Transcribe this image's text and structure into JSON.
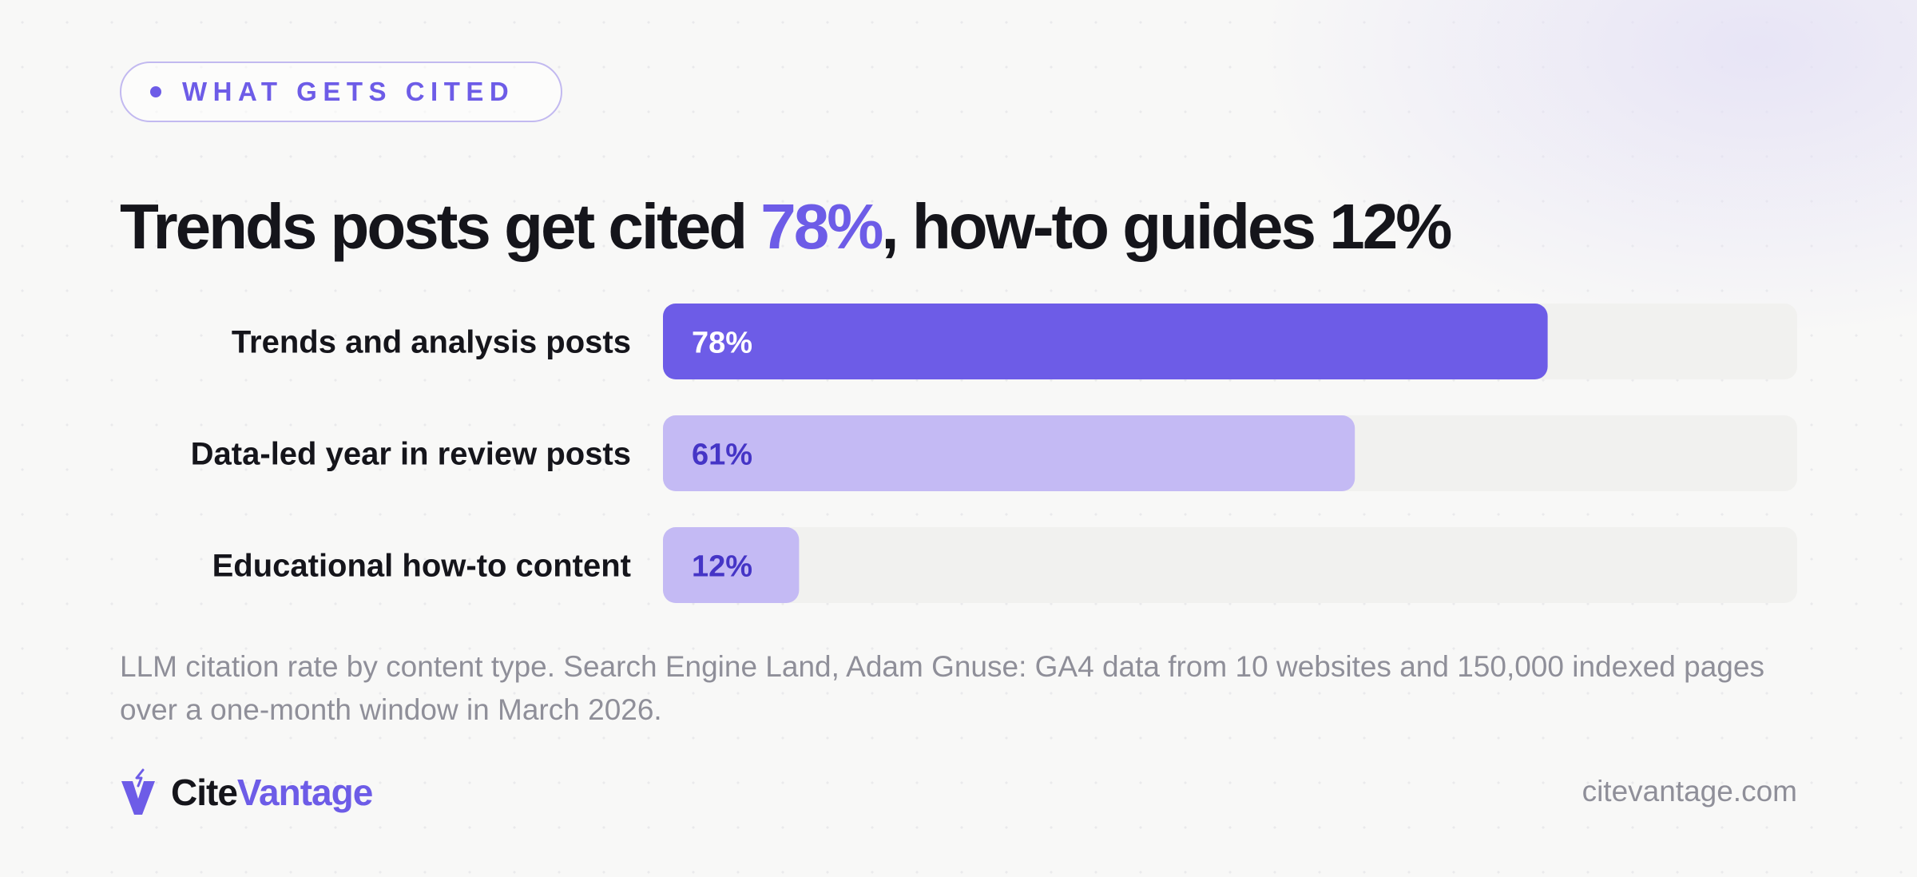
{
  "badge": {
    "label": "WHAT GETS CITED"
  },
  "headline": {
    "part1": "Trends posts get cited ",
    "highlight": "78%",
    "part2": ", how-to guides 12%"
  },
  "chart_data": {
    "type": "bar",
    "orientation": "horizontal",
    "categories": [
      "Trends and analysis posts",
      "Data-led year in review posts",
      "Educational how-to content"
    ],
    "values": [
      78,
      61,
      12
    ],
    "value_labels": [
      "78%",
      "61%",
      "12%"
    ],
    "xlim": [
      0,
      100
    ],
    "grid": false,
    "colors": {
      "primary_bar": "#6d5ce7",
      "secondary_bar": "#c4baf4",
      "track": "#f1f1ef",
      "primary_value_text": "#ffffff",
      "secondary_value_text": "#4535c6"
    }
  },
  "caption": "LLM citation rate by content type. Search Engine Land, Adam Gnuse: GA4 data from 10 websites and 150,000 indexed pages over a one-month window in March 2026.",
  "brand": {
    "name_part1": "Cite",
    "name_part2": "Vantage",
    "logo_icon": "v-lightning-icon"
  },
  "site_url": "citevantage.com"
}
